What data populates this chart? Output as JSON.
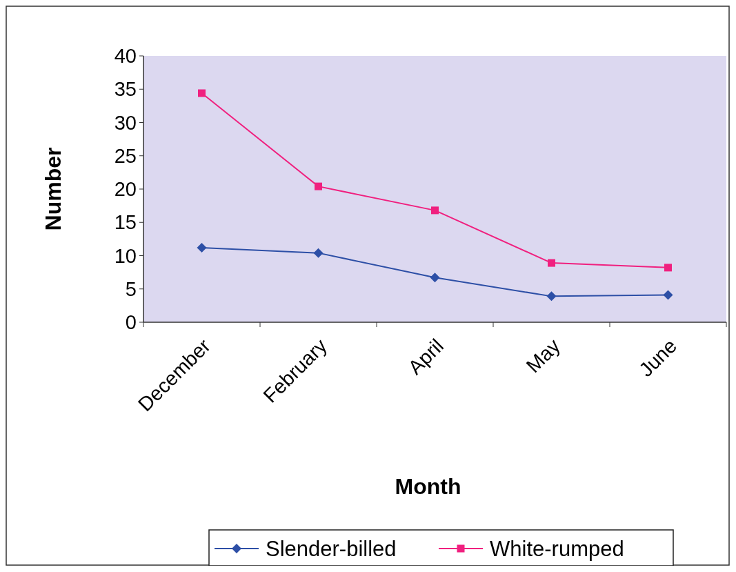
{
  "chart_data": {
    "type": "line",
    "xlabel": "Month",
    "ylabel": "Number",
    "categories": [
      "December",
      "February",
      "April",
      "May",
      "June"
    ],
    "series": [
      {
        "name": "Slender-billed",
        "color": "#2d4fa6",
        "marker": "diamond",
        "values": [
          11.2,
          10.4,
          6.7,
          3.9,
          4.1
        ]
      },
      {
        "name": "White-rumped",
        "color": "#f0207f",
        "marker": "square",
        "values": [
          34.4,
          20.4,
          16.8,
          8.9,
          8.2
        ]
      }
    ],
    "ylim": [
      0,
      40
    ],
    "yticks": [
      0,
      5,
      10,
      15,
      20,
      25,
      30,
      35,
      40
    ],
    "grid": false,
    "legend": "bottom"
  }
}
